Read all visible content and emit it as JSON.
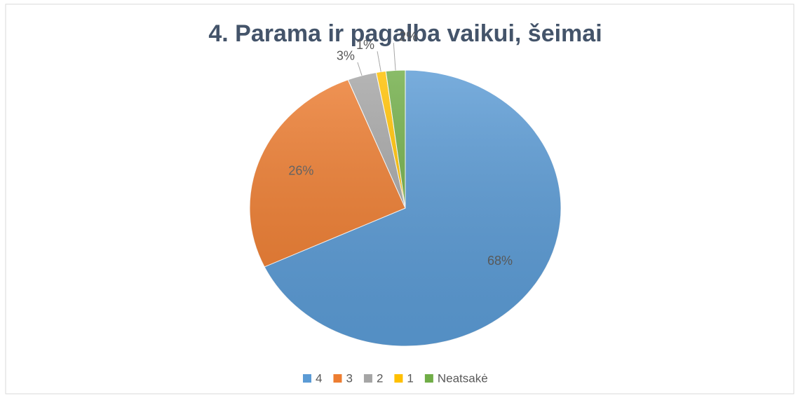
{
  "chart_data": {
    "type": "pie",
    "title": "4. Parama ir pagalba vaikui, šeimai",
    "categories": [
      "4",
      "3",
      "2",
      "1",
      "Neatsakė"
    ],
    "values": [
      68,
      26,
      3,
      1,
      2
    ],
    "value_labels": [
      "68%",
      "26%",
      "3%",
      "1%",
      "2%"
    ],
    "colors": [
      "#5b9bd5",
      "#ed7d31",
      "#a5a5a5",
      "#ffc000",
      "#70ad47"
    ],
    "legend": "bottom"
  }
}
